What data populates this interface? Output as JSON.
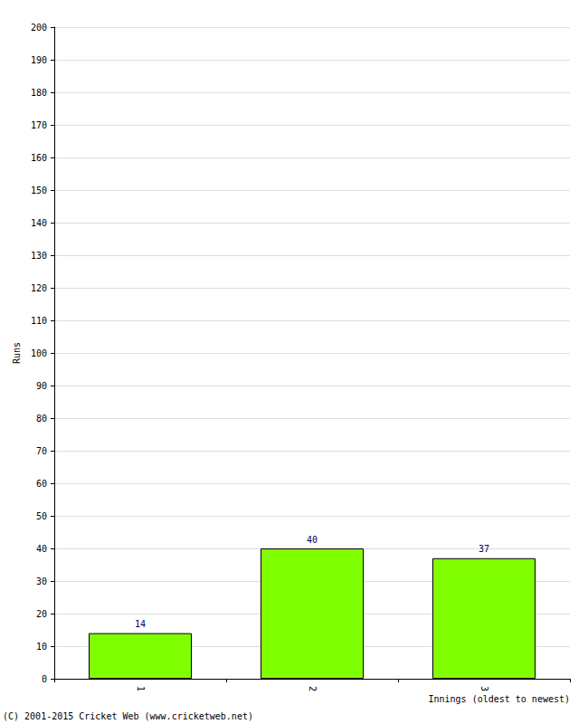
{
  "chart_data": {
    "type": "bar",
    "x_label": "Innings (oldest to newest)",
    "y_label": "Runs",
    "annotations": [
      "(C) 2001-2015 Cricket Web (www.cricketweb.net)"
    ],
    "categories": [
      "1",
      "2",
      "3"
    ],
    "values": [
      14,
      40,
      37
    ],
    "color": "#80ff00",
    "ylim": [
      0,
      200
    ],
    "yticks": [
      0,
      10,
      20,
      30,
      40,
      50,
      60,
      70,
      80,
      90,
      100,
      110,
      120,
      130,
      140,
      150,
      160,
      170,
      180,
      190,
      200
    ],
    "grid": true,
    "data_labels": true
  }
}
